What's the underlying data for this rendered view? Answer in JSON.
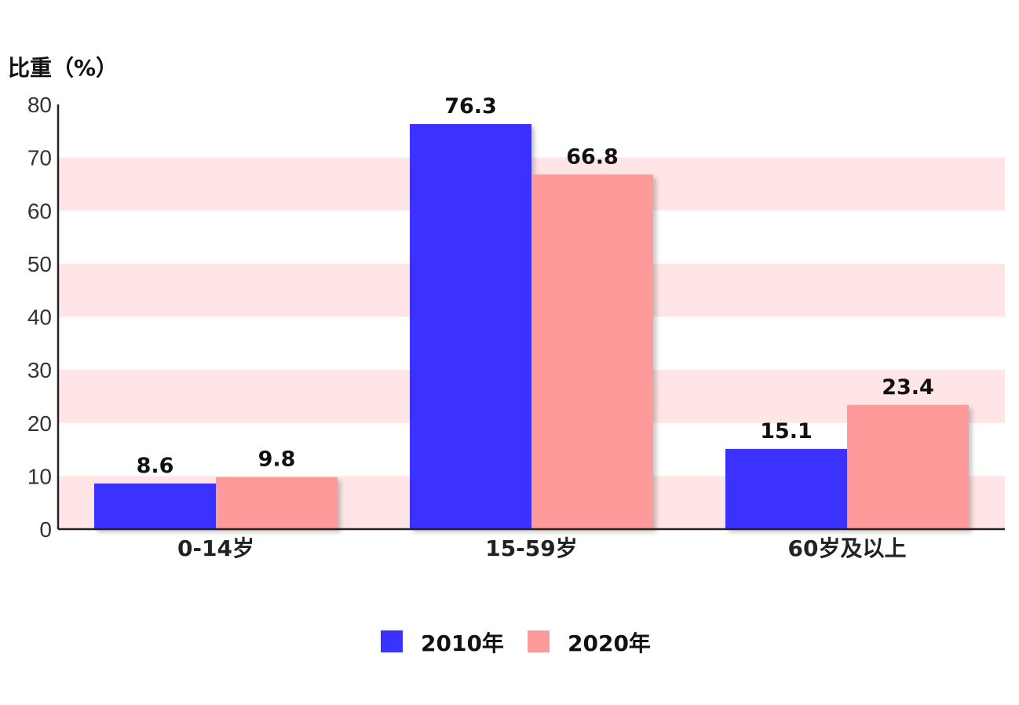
{
  "chart_data": {
    "type": "bar",
    "title": "",
    "xlabel": "",
    "ylabel": "比重（%）",
    "ylim": [
      0,
      80
    ],
    "yticks": [
      0,
      10,
      20,
      30,
      40,
      50,
      60,
      70,
      80
    ],
    "categories": [
      "0-14岁",
      "15-59岁",
      "60岁及以上"
    ],
    "series": [
      {
        "name": "2010年",
        "values": [
          8.6,
          76.3,
          15.1
        ],
        "color": "#3a33ff"
      },
      {
        "name": "2020年",
        "values": [
          9.8,
          66.8,
          23.4
        ],
        "color": "#ff9a9a"
      }
    ],
    "grid": "alternating horizontal bands",
    "band_color": "#ffe5e5",
    "legend": "bottom-center"
  }
}
